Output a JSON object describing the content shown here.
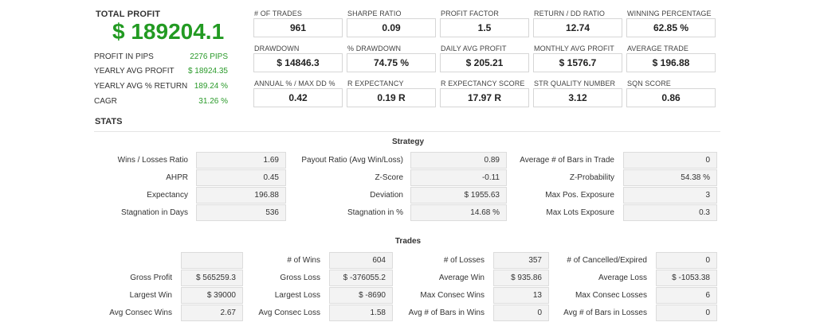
{
  "summary": {
    "total_profit_label": "TOTAL PROFIT",
    "total_profit_value": "$ 189204.1",
    "rows": [
      {
        "label": "PROFIT IN PIPS",
        "value": "2276 PIPS"
      },
      {
        "label": "YEARLY AVG PROFIT",
        "value": "$ 18924.35"
      },
      {
        "label": "YEARLY AVG % RETURN",
        "value": "189.24 %"
      },
      {
        "label": "CAGR",
        "value": "31.26 %"
      }
    ]
  },
  "metrics": [
    [
      {
        "label": "# OF TRADES",
        "value": "961"
      },
      {
        "label": "SHARPE RATIO",
        "value": "0.09"
      },
      {
        "label": "PROFIT FACTOR",
        "value": "1.5"
      },
      {
        "label": "RETURN / DD RATIO",
        "value": "12.74"
      },
      {
        "label": "WINNING PERCENTAGE",
        "value": "62.85 %"
      }
    ],
    [
      {
        "label": "DRAWDOWN",
        "value": "$ 14846.3"
      },
      {
        "label": "% DRAWDOWN",
        "value": "74.75 %"
      },
      {
        "label": "DAILY AVG PROFIT",
        "value": "$ 205.21"
      },
      {
        "label": "MONTHLY AVG PROFIT",
        "value": "$ 1576.7"
      },
      {
        "label": "AVERAGE TRADE",
        "value": "$ 196.88"
      }
    ],
    [
      {
        "label": "ANNUAL % / MAX DD %",
        "value": "0.42"
      },
      {
        "label": "R EXPECTANCY",
        "value": "0.19 R"
      },
      {
        "label": "R EXPECTANCY SCORE",
        "value": "17.97 R"
      },
      {
        "label": "STR QUALITY NUMBER",
        "value": "3.12"
      },
      {
        "label": "SQN SCORE",
        "value": "0.86"
      }
    ]
  ],
  "stats_title": "STATS",
  "strategy": {
    "title": "Strategy",
    "rows": [
      [
        {
          "label": "Wins / Losses Ratio",
          "value": "1.69"
        },
        {
          "label": "Payout Ratio (Avg Win/Loss)",
          "value": "0.89"
        },
        {
          "label": "Average # of Bars in Trade",
          "value": "0"
        }
      ],
      [
        {
          "label": "AHPR",
          "value": "0.45"
        },
        {
          "label": "Z-Score",
          "value": "-0.11"
        },
        {
          "label": "Z-Probability",
          "value": "54.38 %"
        }
      ],
      [
        {
          "label": "Expectancy",
          "value": "196.88"
        },
        {
          "label": "Deviation",
          "value": "$ 1955.63"
        },
        {
          "label": "Max Pos. Exposure",
          "value": "3"
        }
      ],
      [
        {
          "label": "Stagnation in Days",
          "value": "536"
        },
        {
          "label": "Stagnation in %",
          "value": "14.68 %"
        },
        {
          "label": "Max Lots Exposure",
          "value": "0.3"
        }
      ]
    ]
  },
  "trades": {
    "title": "Trades",
    "rows": [
      [
        {
          "label": "",
          "value": ""
        },
        {
          "label": "# of Wins",
          "value": "604"
        },
        {
          "label": "# of Losses",
          "value": "357"
        },
        {
          "label": "# of Cancelled/Expired",
          "value": "0"
        }
      ],
      [
        {
          "label": "Gross Profit",
          "value": "$ 565259.3"
        },
        {
          "label": "Gross Loss",
          "value": "$ -376055.2"
        },
        {
          "label": "Average Win",
          "value": "$ 935.86"
        },
        {
          "label": "Average Loss",
          "value": "$ -1053.38"
        }
      ],
      [
        {
          "label": "Largest Win",
          "value": "$ 39000"
        },
        {
          "label": "Largest Loss",
          "value": "$ -8690"
        },
        {
          "label": "Max Consec Wins",
          "value": "13"
        },
        {
          "label": "Max Consec Losses",
          "value": "6"
        }
      ],
      [
        {
          "label": "Avg Consec Wins",
          "value": "2.67"
        },
        {
          "label": "Avg Consec Loss",
          "value": "1.58"
        },
        {
          "label": "Avg # of Bars in Wins",
          "value": "0"
        },
        {
          "label": "Avg # of Bars in Losses",
          "value": "0"
        }
      ]
    ]
  }
}
